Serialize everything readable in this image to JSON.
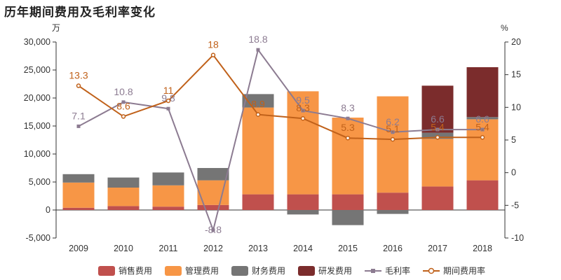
{
  "chart_data": {
    "type": "bar",
    "title": "历年期间费用及毛利率变化",
    "y_left_unit": "万",
    "y_right_unit": "%",
    "ylim": [
      -5000,
      30000
    ],
    "ylim_right": [
      -10,
      20
    ],
    "left_ticks": [
      "-5,000",
      "0",
      "5,000",
      "10,000",
      "15,000",
      "20,000",
      "25,000",
      "30,000"
    ],
    "right_ticks": [
      "-10",
      "-5",
      "0",
      "5",
      "10",
      "15",
      "20"
    ],
    "categories": [
      "2009",
      "2010",
      "2011",
      "2012",
      "2013",
      "2014",
      "2015",
      "2016",
      "2017",
      "2018"
    ],
    "bar_series": [
      {
        "name": "销售费用",
        "color": "#c0504d",
        "values": [
          400,
          700,
          600,
          900,
          2800,
          2800,
          2800,
          3100,
          4200,
          5300
        ]
      },
      {
        "name": "管理费用",
        "color": "#f79646",
        "values": [
          4500,
          3300,
          3800,
          4400,
          15500,
          18400,
          13700,
          17200,
          8500,
          10900
        ]
      },
      {
        "name": "财务费用",
        "color": "#757575",
        "values": [
          1500,
          1800,
          2300,
          2200,
          2400,
          -800,
          -2700,
          -700,
          1100,
          400
        ]
      },
      {
        "name": "研发费用",
        "color": "#7b2c2c",
        "values": [
          0,
          0,
          0,
          0,
          0,
          0,
          0,
          0,
          8400,
          8900
        ]
      }
    ],
    "line_series": [
      {
        "name": "毛利率",
        "color": "#8c7b91",
        "marker": "square",
        "values": [
          7.1,
          10.8,
          9.8,
          -8.8,
          18.8,
          9.5,
          8.3,
          6.2,
          6.6,
          6.6
        ],
        "labels": [
          "7.1",
          "10.8",
          "9.8",
          "-8.8",
          "18.8",
          "9.5",
          "8.3",
          "6.2",
          "6.6",
          "6.6"
        ]
      },
      {
        "name": "期间费用率",
        "color": "#c0611a",
        "marker": "circle",
        "values": [
          13.3,
          8.6,
          11,
          18,
          8.9,
          8.3,
          5.3,
          5.1,
          5.4,
          5.4
        ],
        "labels": [
          "13.3",
          "8.6",
          "11",
          "18",
          "8.9",
          "8.3",
          "5.3",
          "5.1",
          "5.4",
          "5.4"
        ]
      }
    ],
    "legend_position": "bottom",
    "grid": false
  }
}
